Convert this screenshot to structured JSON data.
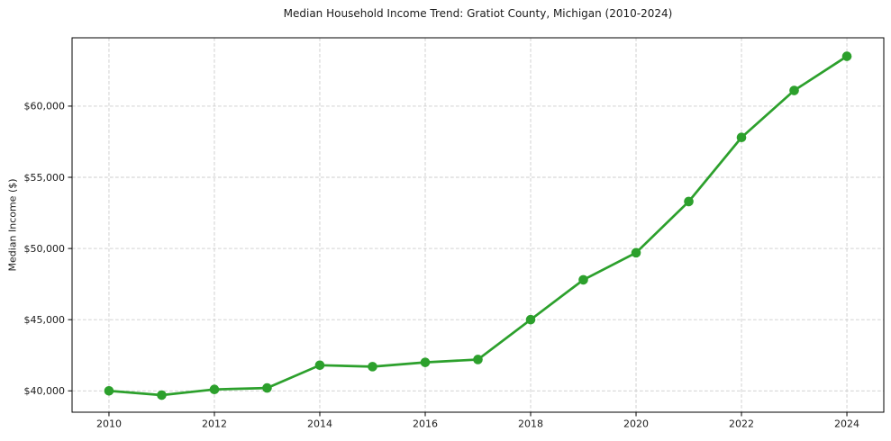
{
  "chart_data": {
    "type": "line",
    "title": "Median Household Income Trend: Gratiot County, Michigan (2010-2024)",
    "xlabel": "",
    "ylabel": "Median Income ($)",
    "x": [
      2010,
      2011,
      2012,
      2013,
      2014,
      2015,
      2016,
      2017,
      2018,
      2019,
      2020,
      2021,
      2022,
      2023,
      2024
    ],
    "values": [
      40000,
      39700,
      40100,
      40200,
      41800,
      41700,
      42000,
      42200,
      45000,
      47800,
      49700,
      53300,
      57800,
      61100,
      63500
    ],
    "x_ticks": [
      2010,
      2012,
      2014,
      2016,
      2018,
      2020,
      2022,
      2024
    ],
    "x_tick_labels": [
      "2010",
      "2012",
      "2014",
      "2016",
      "2018",
      "2020",
      "2022",
      "2024"
    ],
    "y_ticks": [
      40000,
      45000,
      50000,
      55000,
      60000
    ],
    "y_tick_labels": [
      "$40,000",
      "$45,000",
      "$50,000",
      "$55,000",
      "$60,000"
    ],
    "xlim": [
      2009.3,
      2024.7
    ],
    "ylim": [
      38500,
      64800
    ],
    "grid": true,
    "legend": "none",
    "line_color": "#2ca02c",
    "marker": "circle",
    "marker_radius": 5.3
  }
}
